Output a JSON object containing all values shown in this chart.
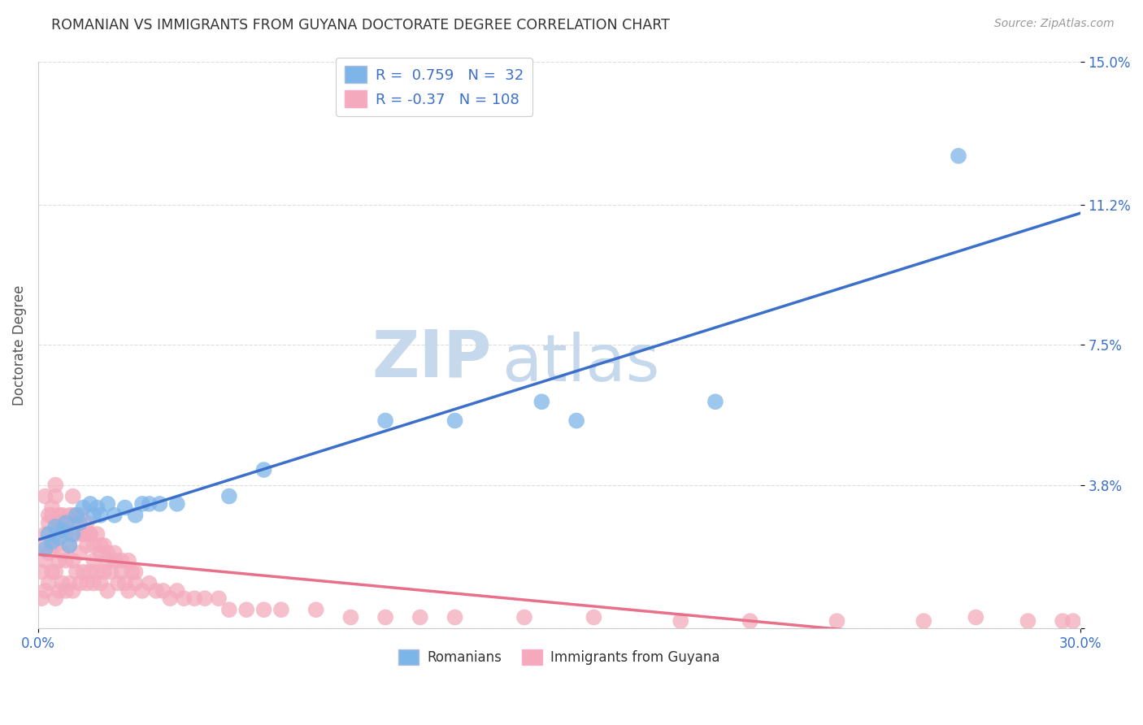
{
  "title": "ROMANIAN VS IMMIGRANTS FROM GUYANA DOCTORATE DEGREE CORRELATION CHART",
  "source": "Source: ZipAtlas.com",
  "ylabel": "Doctorate Degree",
  "xlim": [
    0.0,
    0.3
  ],
  "ylim": [
    0.0,
    0.15
  ],
  "xtick_positions": [
    0.0,
    0.3
  ],
  "xticklabels": [
    "0.0%",
    "30.0%"
  ],
  "ytick_positions": [
    0.0,
    0.038,
    0.075,
    0.112,
    0.15
  ],
  "ytick_labels": [
    "",
    "3.8%",
    "7.5%",
    "11.2%",
    "15.0%"
  ],
  "blue_color": "#7EB5E8",
  "blue_line_color": "#3B6FC9",
  "pink_color": "#F4AABC",
  "pink_line_color": "#E8708A",
  "legend_blue_label": "Romanians",
  "legend_pink_label": "Immigrants from Guyana",
  "R_blue": 0.759,
  "N_blue": 32,
  "R_pink": -0.37,
  "N_pink": 108,
  "watermark_zip": "ZIP",
  "watermark_atlas": "atlas",
  "watermark_color": "#C5D8EC",
  "background_color": "#FFFFFF",
  "grid_color": "#DDDDDD",
  "blue_scatter_x": [
    0.002,
    0.003,
    0.004,
    0.005,
    0.006,
    0.007,
    0.008,
    0.009,
    0.01,
    0.011,
    0.012,
    0.013,
    0.015,
    0.016,
    0.017,
    0.018,
    0.02,
    0.022,
    0.025,
    0.028,
    0.03,
    0.032,
    0.035,
    0.04,
    0.055,
    0.065,
    0.1,
    0.12,
    0.145,
    0.155,
    0.195,
    0.265
  ],
  "blue_scatter_y": [
    0.021,
    0.025,
    0.023,
    0.027,
    0.024,
    0.026,
    0.028,
    0.022,
    0.025,
    0.03,
    0.028,
    0.032,
    0.033,
    0.03,
    0.032,
    0.03,
    0.033,
    0.03,
    0.032,
    0.03,
    0.033,
    0.033,
    0.033,
    0.033,
    0.035,
    0.042,
    0.055,
    0.055,
    0.06,
    0.055,
    0.06,
    0.125
  ],
  "pink_scatter_x": [
    0.001,
    0.001,
    0.001,
    0.002,
    0.002,
    0.002,
    0.003,
    0.003,
    0.003,
    0.004,
    0.004,
    0.004,
    0.005,
    0.005,
    0.005,
    0.005,
    0.006,
    0.006,
    0.006,
    0.007,
    0.007,
    0.007,
    0.008,
    0.008,
    0.008,
    0.009,
    0.009,
    0.01,
    0.01,
    0.01,
    0.011,
    0.011,
    0.012,
    0.012,
    0.013,
    0.013,
    0.014,
    0.014,
    0.015,
    0.015,
    0.016,
    0.016,
    0.017,
    0.018,
    0.018,
    0.019,
    0.02,
    0.02,
    0.021,
    0.022,
    0.023,
    0.024,
    0.025,
    0.026,
    0.027,
    0.028,
    0.03,
    0.032,
    0.034,
    0.036,
    0.038,
    0.04,
    0.042,
    0.045,
    0.048,
    0.052,
    0.055,
    0.06,
    0.065,
    0.07,
    0.08,
    0.09,
    0.1,
    0.11,
    0.12,
    0.14,
    0.16,
    0.185,
    0.205,
    0.23,
    0.255,
    0.27,
    0.285,
    0.295,
    0.298,
    0.002,
    0.003,
    0.004,
    0.005,
    0.006,
    0.007,
    0.008,
    0.009,
    0.01,
    0.011,
    0.012,
    0.013,
    0.014,
    0.015,
    0.016,
    0.017,
    0.018,
    0.019,
    0.02,
    0.022,
    0.024,
    0.026,
    0.028
  ],
  "pink_scatter_y": [
    0.008,
    0.015,
    0.022,
    0.01,
    0.018,
    0.025,
    0.012,
    0.02,
    0.028,
    0.015,
    0.022,
    0.03,
    0.008,
    0.015,
    0.022,
    0.038,
    0.01,
    0.018,
    0.028,
    0.012,
    0.02,
    0.03,
    0.01,
    0.018,
    0.025,
    0.012,
    0.022,
    0.01,
    0.018,
    0.03,
    0.015,
    0.025,
    0.012,
    0.02,
    0.015,
    0.025,
    0.012,
    0.022,
    0.015,
    0.025,
    0.012,
    0.018,
    0.015,
    0.012,
    0.02,
    0.015,
    0.01,
    0.018,
    0.015,
    0.018,
    0.012,
    0.015,
    0.012,
    0.01,
    0.015,
    0.012,
    0.01,
    0.012,
    0.01,
    0.01,
    0.008,
    0.01,
    0.008,
    0.008,
    0.008,
    0.008,
    0.005,
    0.005,
    0.005,
    0.005,
    0.005,
    0.003,
    0.003,
    0.003,
    0.003,
    0.003,
    0.003,
    0.002,
    0.002,
    0.002,
    0.002,
    0.003,
    0.002,
    0.002,
    0.002,
    0.035,
    0.03,
    0.032,
    0.035,
    0.03,
    0.028,
    0.028,
    0.03,
    0.035,
    0.028,
    0.03,
    0.025,
    0.028,
    0.025,
    0.022,
    0.025,
    0.022,
    0.022,
    0.02,
    0.02,
    0.018,
    0.018,
    0.015
  ]
}
